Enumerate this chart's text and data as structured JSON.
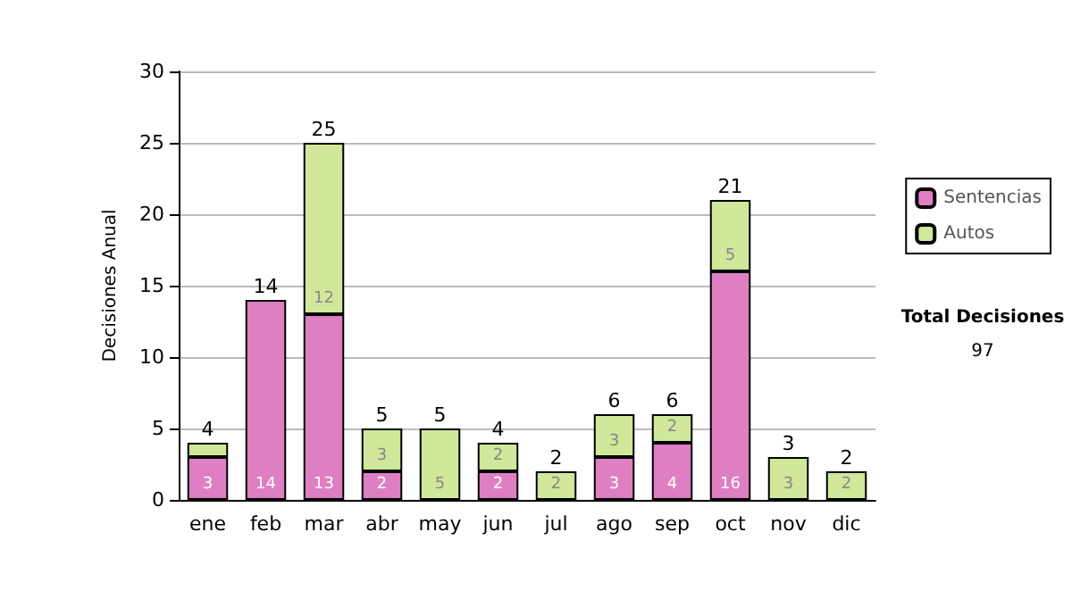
{
  "chart_data": {
    "type": "bar",
    "stacked": true,
    "ylabel": "Decisiones Anual",
    "categories": [
      "ene",
      "feb",
      "mar",
      "abr",
      "may",
      "jun",
      "jul",
      "ago",
      "sep",
      "oct",
      "nov",
      "dic"
    ],
    "series": [
      {
        "name": "Sentencias",
        "color": "#de7fc4",
        "values": [
          3,
          14,
          13,
          2,
          0,
          2,
          0,
          3,
          4,
          16,
          0,
          0
        ],
        "value_labels": [
          "3",
          "14",
          "13",
          "2",
          null,
          "2",
          null,
          "3",
          "4",
          "16",
          null,
          null
        ]
      },
      {
        "name": "Autos",
        "color": "#cfe89a",
        "values": [
          1,
          0,
          12,
          3,
          5,
          2,
          2,
          3,
          2,
          5,
          3,
          2
        ],
        "value_labels": [
          null,
          null,
          "12",
          "3",
          "5",
          "2",
          "2",
          "3",
          "2",
          "5",
          "3",
          "2"
        ]
      }
    ],
    "totals": [
      "4",
      "14",
      "25",
      "5",
      "5",
      "4",
      "2",
      "6",
      "6",
      "21",
      "3",
      "2"
    ],
    "ylim": [
      0,
      30
    ],
    "yticks": [
      0,
      5,
      10,
      15,
      20,
      25,
      30
    ],
    "grid": "y",
    "legend": "right",
    "annotations": [
      "Total Decisiones",
      "97"
    ]
  }
}
